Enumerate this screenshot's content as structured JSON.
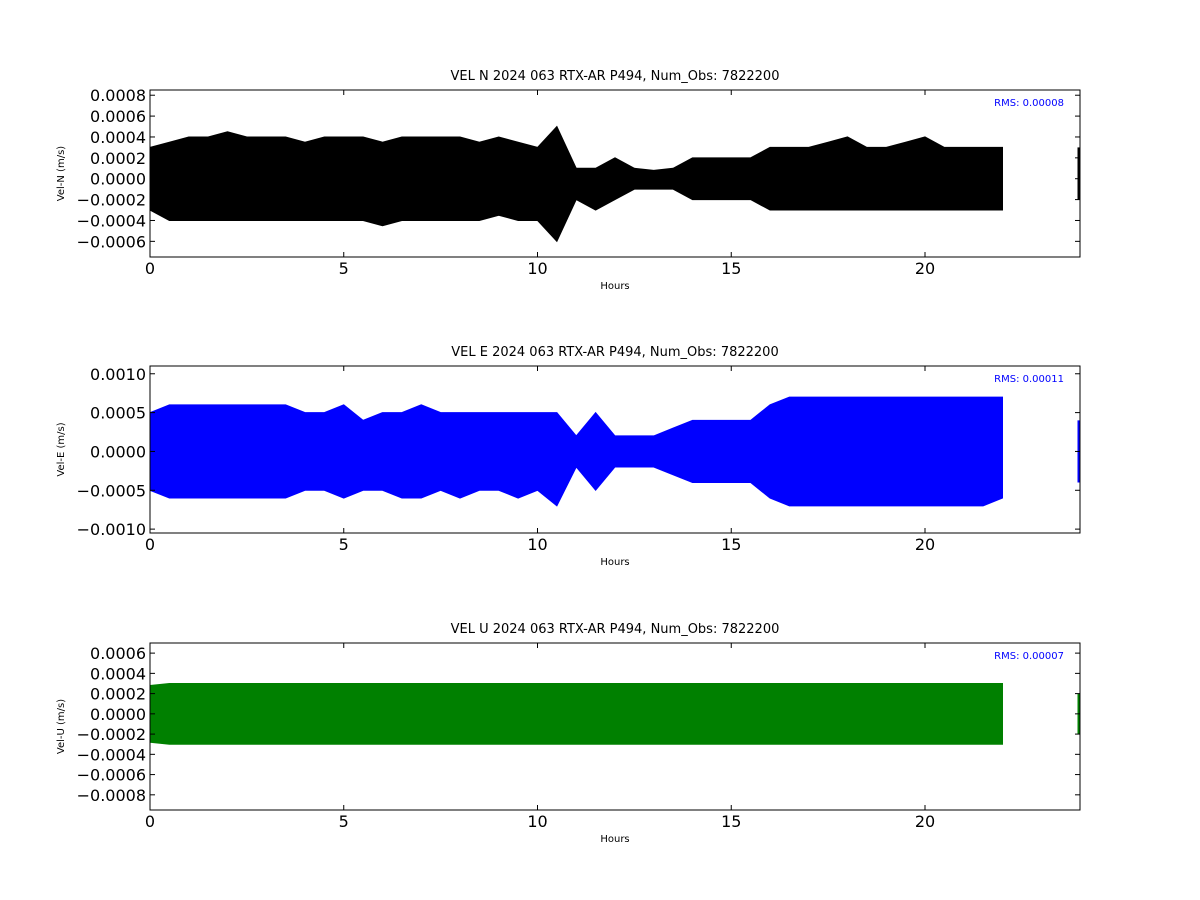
{
  "chart_data": [
    {
      "type": "line",
      "title": "VEL N 2024 063 RTX-AR  P494, Num_Obs: 7822200",
      "xlabel": "Hours",
      "ylabel": "Vel-N (m/s)",
      "xlim": [
        0,
        24
      ],
      "ylim": [
        -0.00075,
        0.00085
      ],
      "x_ticks": [
        0,
        5,
        10,
        15,
        20
      ],
      "x_tick_labels": [
        "0",
        "5",
        "10",
        "15",
        "20"
      ],
      "y_ticks": [
        -0.0006,
        -0.0004,
        -0.0002,
        0.0,
        0.0002,
        0.0004,
        0.0006,
        0.0008
      ],
      "y_tick_labels": [
        "−0.0006",
        "−0.0004",
        "−0.0002",
        "0.0000",
        "0.0002",
        "0.0004",
        "0.0006",
        "0.0008"
      ],
      "annotation": "RMS:  0.00008",
      "color": "#000000",
      "annotation_color": "#0000ff",
      "grid": false,
      "series": [
        {
          "x": [
            0.0,
            0.5,
            1.0,
            1.5,
            2.0,
            2.5,
            3.0,
            3.5,
            4.0,
            4.5,
            5.0,
            5.5,
            6.0,
            6.5,
            7.0,
            7.5,
            8.0,
            8.5,
            9.0,
            9.5,
            10.0,
            10.5,
            11.0,
            11.5,
            12.0,
            12.5,
            13.0,
            13.5,
            14.0,
            14.5,
            15.0,
            15.5,
            16.0,
            16.5,
            17.0,
            17.5,
            18.0,
            18.5,
            19.0,
            19.5,
            20.0,
            20.5,
            21.0,
            21.5,
            22.0,
            24.0
          ],
          "upper": [
            0.0003,
            0.00035,
            0.0004,
            0.0004,
            0.00045,
            0.0004,
            0.0004,
            0.0004,
            0.00035,
            0.0004,
            0.0004,
            0.0004,
            0.00035,
            0.0004,
            0.0004,
            0.0004,
            0.0004,
            0.00035,
            0.0004,
            0.00035,
            0.0003,
            0.0005,
            0.0001,
            0.0001,
            0.0002,
            0.0001,
            8e-05,
            0.0001,
            0.0002,
            0.0002,
            0.0002,
            0.0002,
            0.0003,
            0.0003,
            0.0003,
            0.00035,
            0.0004,
            0.0003,
            0.0003,
            0.00035,
            0.0004,
            0.0003,
            0.0003,
            0.0003,
            0.0003,
            0.0003
          ],
          "lower": [
            -0.0003,
            -0.0004,
            -0.0004,
            -0.0004,
            -0.0004,
            -0.0004,
            -0.0004,
            -0.0004,
            -0.0004,
            -0.0004,
            -0.0004,
            -0.0004,
            -0.00045,
            -0.0004,
            -0.0004,
            -0.0004,
            -0.0004,
            -0.0004,
            -0.00035,
            -0.0004,
            -0.0004,
            -0.0006,
            -0.0002,
            -0.0003,
            -0.0002,
            -0.0001,
            -0.0001,
            -0.0001,
            -0.0002,
            -0.0002,
            -0.0002,
            -0.0002,
            -0.0003,
            -0.0003,
            -0.0003,
            -0.0003,
            -0.0003,
            -0.0003,
            -0.0003,
            -0.0003,
            -0.0003,
            -0.0003,
            -0.0003,
            -0.0003,
            -0.0003,
            -0.0002
          ]
        }
      ]
    },
    {
      "type": "line",
      "title": "VEL E 2024 063 RTX-AR  P494, Num_Obs: 7822200",
      "xlabel": "Hours",
      "ylabel": "Vel-E (m/s)",
      "xlim": [
        0,
        24
      ],
      "ylim": [
        -0.00105,
        0.0011
      ],
      "x_ticks": [
        0,
        5,
        10,
        15,
        20
      ],
      "x_tick_labels": [
        "0",
        "5",
        "10",
        "15",
        "20"
      ],
      "y_ticks": [
        -0.001,
        -0.0005,
        0.0,
        0.0005,
        0.001
      ],
      "y_tick_labels": [
        "−0.0010",
        "−0.0005",
        "0.0000",
        "0.0005",
        "0.0010"
      ],
      "annotation": "RMS:  0.00011",
      "color": "#0000ff",
      "annotation_color": "#0000ff",
      "grid": false,
      "series": [
        {
          "x": [
            0.0,
            0.5,
            1.0,
            1.5,
            2.0,
            2.5,
            3.0,
            3.5,
            4.0,
            4.5,
            5.0,
            5.5,
            6.0,
            6.5,
            7.0,
            7.5,
            8.0,
            8.5,
            9.0,
            9.5,
            10.0,
            10.5,
            11.0,
            11.5,
            12.0,
            12.5,
            13.0,
            13.5,
            14.0,
            14.5,
            15.0,
            15.5,
            16.0,
            16.5,
            17.0,
            17.5,
            18.0,
            18.5,
            19.0,
            19.5,
            20.0,
            20.5,
            21.0,
            21.5,
            22.0,
            24.0
          ],
          "upper": [
            0.0005,
            0.0006,
            0.0006,
            0.0006,
            0.0006,
            0.0006,
            0.0006,
            0.0006,
            0.0005,
            0.0005,
            0.0006,
            0.0004,
            0.0005,
            0.0005,
            0.0006,
            0.0005,
            0.0005,
            0.0005,
            0.0005,
            0.0005,
            0.0005,
            0.0005,
            0.0002,
            0.0005,
            0.0002,
            0.0002,
            0.0002,
            0.0003,
            0.0004,
            0.0004,
            0.0004,
            0.0004,
            0.0006,
            0.0007,
            0.0007,
            0.0007,
            0.0007,
            0.0007,
            0.0007,
            0.0007,
            0.0007,
            0.0007,
            0.0007,
            0.0007,
            0.0007,
            0.0004
          ],
          "lower": [
            -0.0005,
            -0.0006,
            -0.0006,
            -0.0006,
            -0.0006,
            -0.0006,
            -0.0006,
            -0.0006,
            -0.0005,
            -0.0005,
            -0.0006,
            -0.0005,
            -0.0005,
            -0.0006,
            -0.0006,
            -0.0005,
            -0.0006,
            -0.0005,
            -0.0005,
            -0.0006,
            -0.0005,
            -0.0007,
            -0.0002,
            -0.0005,
            -0.0002,
            -0.0002,
            -0.0002,
            -0.0003,
            -0.0004,
            -0.0004,
            -0.0004,
            -0.0004,
            -0.0006,
            -0.0007,
            -0.0007,
            -0.0007,
            -0.0007,
            -0.0007,
            -0.0007,
            -0.0007,
            -0.0007,
            -0.0007,
            -0.0007,
            -0.0007,
            -0.0006,
            -0.0004
          ]
        }
      ]
    },
    {
      "type": "line",
      "title": "VEL U 2024 063 RTX-AR  P494, Num_Obs: 7822200",
      "xlabel": "Hours",
      "ylabel": "Vel-U (m/s)",
      "xlim": [
        0,
        24
      ],
      "ylim": [
        -0.00095,
        0.0007
      ],
      "x_ticks": [
        0,
        5,
        10,
        15,
        20
      ],
      "x_tick_labels": [
        "0",
        "5",
        "10",
        "15",
        "20"
      ],
      "y_ticks": [
        -0.0008,
        -0.0006,
        -0.0004,
        -0.0002,
        0.0,
        0.0002,
        0.0004,
        0.0006
      ],
      "y_tick_labels": [
        "−0.0008",
        "−0.0006",
        "−0.0004",
        "−0.0002",
        "0.0000",
        "0.0002",
        "0.0004",
        "0.0006"
      ],
      "annotation": "RMS:  0.00007",
      "color": "#008000",
      "annotation_color": "#0000ff",
      "grid": false,
      "series": [
        {
          "x": [
            0.0,
            0.5,
            1.0,
            1.5,
            2.0,
            2.5,
            3.0,
            3.5,
            4.0,
            4.5,
            5.0,
            5.5,
            6.0,
            6.5,
            7.0,
            7.5,
            8.0,
            8.5,
            9.0,
            9.5,
            10.0,
            10.5,
            11.0,
            11.5,
            12.0,
            12.5,
            13.0,
            13.5,
            14.0,
            14.5,
            15.0,
            15.5,
            16.0,
            16.5,
            17.0,
            17.5,
            18.0,
            18.5,
            19.0,
            19.5,
            20.0,
            20.5,
            21.0,
            21.5,
            22.0,
            24.0
          ],
          "upper": [
            0.00028,
            0.0003,
            0.0003,
            0.0003,
            0.0003,
            0.0003,
            0.0003,
            0.0003,
            0.0003,
            0.0003,
            0.0003,
            0.0003,
            0.0003,
            0.0003,
            0.0003,
            0.0003,
            0.0003,
            0.0003,
            0.0003,
            0.0003,
            0.0003,
            0.0003,
            0.0003,
            0.0003,
            0.0003,
            0.0003,
            0.0003,
            0.0003,
            0.0003,
            0.0003,
            0.0003,
            0.0003,
            0.0003,
            0.0003,
            0.0003,
            0.0003,
            0.0003,
            0.0003,
            0.0003,
            0.0003,
            0.0003,
            0.0003,
            0.0003,
            0.0003,
            0.0003,
            0.0002
          ],
          "lower": [
            -0.00028,
            -0.0003,
            -0.0003,
            -0.0003,
            -0.0003,
            -0.0003,
            -0.0003,
            -0.0003,
            -0.0003,
            -0.0003,
            -0.0003,
            -0.0003,
            -0.0003,
            -0.0003,
            -0.0003,
            -0.0003,
            -0.0003,
            -0.0003,
            -0.0003,
            -0.0003,
            -0.0003,
            -0.0003,
            -0.0003,
            -0.0003,
            -0.0003,
            -0.0003,
            -0.0003,
            -0.0003,
            -0.0003,
            -0.0003,
            -0.0003,
            -0.0003,
            -0.0003,
            -0.0003,
            -0.0003,
            -0.0003,
            -0.0003,
            -0.0003,
            -0.0003,
            -0.0003,
            -0.0003,
            -0.0003,
            -0.0003,
            -0.0003,
            -0.0003,
            -0.0002
          ]
        }
      ]
    }
  ]
}
